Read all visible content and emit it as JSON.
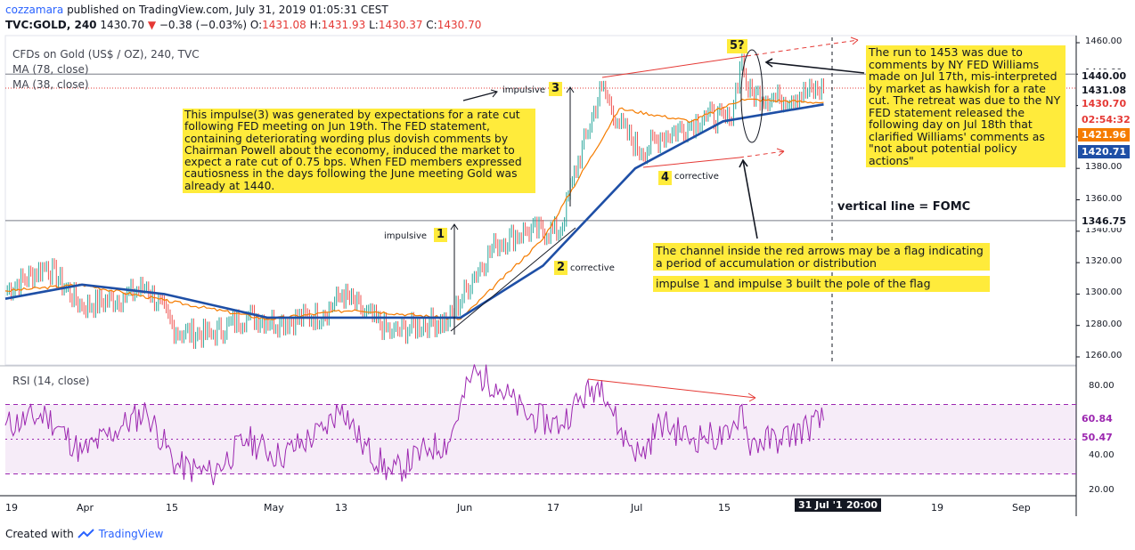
{
  "header": {
    "user": "cozzamara",
    "published_text": "published on TradingView.com, July 31, 2019 01:05:31 CEST",
    "symbol": "TVC:GOLD, 240",
    "last": "1430.70",
    "change_arrow": "▼",
    "change": "−0.38 (−0.03%)",
    "o_label": "O:",
    "o": "1431.08",
    "h_label": "H:",
    "h": "1431.93",
    "l_label": "L:",
    "l": "1430.37",
    "c_label": "C:",
    "c": "1430.70"
  },
  "legend": {
    "title": "CFDs on Gold (US$ / OZ), 240, TVC",
    "ma78": "MA (78, close)",
    "ma38": "MA (38, close)",
    "rsi": "RSI (14, close)"
  },
  "annotations": {
    "impulse3_note": "This impulse(3) was generated by expectations for a rate cut following FED meeting on Jun 19th. The FED statement, containing deteriorating wording plus dovish comments by Chairman Powell about the economy, induced the market to expect a rate cut of 0.75 bps. When FED members expressed cautiosness in the days following the June meeting Gold was already at 1440.",
    "run_note": "The run to 1453 was due to comments by NY FED Williams made on Jul 17th, mis-interpreted by market as hawkish for a rate cut. The retreat was due to the NY FED statement released the following day on Jul 18th that clarified Williams' comments as \"not about potential policy actions\"",
    "fomc": "vertical line = FOMC",
    "channel_note": "The channel inside the red arrows may be a flag indicating a period of accumulation or distribution",
    "pole_note": "impulse 1 and impulse 3 built the pole of the flag",
    "wave1": "1",
    "wave1_label": "impulsive",
    "wave2": "2",
    "wave2_label": "corrective",
    "wave3": "3",
    "wave3_label": "impulsive",
    "wave4": "4",
    "wave4_label": "corrective",
    "wave5": "5?"
  },
  "price_axis": {
    "ticks": [
      "1460.00",
      "1440.00",
      "1420.00",
      "1400.00",
      "1380.00",
      "1360.00",
      "1340.00",
      "1320.00",
      "1300.00",
      "1280.00",
      "1260.00"
    ],
    "tags": [
      {
        "text": "1440.00",
        "bg": "#ffffff",
        "fg": "#131722"
      },
      {
        "text": "1431.08",
        "bg": "#ffffff",
        "fg": "#131722"
      },
      {
        "text": "1430.70",
        "bg": "#ffffff",
        "fg": "#e53935"
      },
      {
        "text": "02:54:32",
        "bg": "#ffffff",
        "fg": "#e53935"
      },
      {
        "text": "1421.96",
        "bg": "#f57c00",
        "fg": "#ffffff"
      },
      {
        "text": "1420.71",
        "bg": "#1e4fa6",
        "fg": "#ffffff"
      },
      {
        "text": "1346.75",
        "bg": "#ffffff",
        "fg": "#131722"
      }
    ]
  },
  "rsi_axis": {
    "ticks": [
      "80.00",
      "60.00",
      "40.00",
      "20.00"
    ],
    "tags": [
      {
        "text": "60.84",
        "bg": "#ffffff",
        "fg": "#9c27b0"
      },
      {
        "text": "50.47",
        "bg": "#ffffff",
        "fg": "#9c27b0"
      }
    ]
  },
  "time_axis": {
    "labels": [
      "19",
      "Apr",
      "15",
      "May",
      "13",
      "Jun",
      "17",
      "Jul",
      "15",
      "31 Jul '19",
      "20:00",
      "19",
      "Sep"
    ]
  },
  "footer": {
    "created_with": "Created with",
    "brand": "TradingView"
  },
  "colors": {
    "candle": "#26a69a",
    "ma78": "#1e4fa6",
    "ma38": "#f57c00",
    "rsi": "#9c27b0",
    "annotation_red": "#e53935",
    "note_bg": "#ffeb3b"
  },
  "chart_data": {
    "type": "line",
    "title": "CFDs on Gold (US$ / OZ), 240, TVC",
    "price_ylim": [
      1255,
      1465
    ],
    "rsi_ylim": [
      20,
      90
    ],
    "close_path": [
      [
        "Mar 19",
        1302
      ],
      [
        "Mar 26",
        1318
      ],
      [
        "Apr 1",
        1292
      ],
      [
        "Apr 8",
        1298
      ],
      [
        "Apr 12",
        1305
      ],
      [
        "Apr 17",
        1276
      ],
      [
        "Apr 23",
        1274
      ],
      [
        "Apr 29",
        1286
      ],
      [
        "May 3",
        1282
      ],
      [
        "May 10",
        1287
      ],
      [
        "May 13",
        1300
      ],
      [
        "May 16",
        1290
      ],
      [
        "May 21",
        1275
      ],
      [
        "May 27",
        1282
      ],
      [
        "May 30",
        1282
      ],
      [
        "Jun 3",
        1310
      ],
      [
        "Jun 7",
        1332
      ],
      [
        "Jun 12",
        1340
      ],
      [
        "Jun 18",
        1340
      ],
      [
        "Jun 20",
        1372
      ],
      [
        "Jun 25",
        1432
      ],
      [
        "Jun 28",
        1408
      ],
      [
        "Jul 2",
        1390
      ],
      [
        "Jul 5",
        1400
      ],
      [
        "Jul 10",
        1408
      ],
      [
        "Jul 12",
        1414
      ],
      [
        "Jul 16",
        1410
      ],
      [
        "Jul 18",
        1450
      ],
      [
        "Jul 19",
        1428
      ],
      [
        "Jul 24",
        1424
      ],
      [
        "Jul 31",
        1430.7
      ]
    ],
    "ma78_path": [
      [
        "Mar 19",
        1297
      ],
      [
        "Apr 1",
        1306
      ],
      [
        "Apr 15",
        1300
      ],
      [
        "May 1",
        1285
      ],
      [
        "May 15",
        1285
      ],
      [
        "Jun 1",
        1285
      ],
      [
        "Jun 15",
        1318
      ],
      [
        "Jul 1",
        1380
      ],
      [
        "Jul 15",
        1410
      ],
      [
        "Jul 31",
        1420.71
      ]
    ],
    "ma38_path": [
      [
        "Mar 19",
        1302
      ],
      [
        "Apr 1",
        1306
      ],
      [
        "Apr 15",
        1296
      ],
      [
        "May 1",
        1284
      ],
      [
        "May 15",
        1290
      ],
      [
        "Jun 1",
        1284
      ],
      [
        "Jun 15",
        1335
      ],
      [
        "Jun 28",
        1418
      ],
      [
        "Jul 10",
        1410
      ],
      [
        "Jul 18",
        1424
      ],
      [
        "Jul 31",
        1421.96
      ]
    ],
    "rsi_path": [
      [
        "Mar 19",
        58
      ],
      [
        "Mar 26",
        64
      ],
      [
        "Apr 1",
        42
      ],
      [
        "Apr 8",
        58
      ],
      [
        "Apr 12",
        66
      ],
      [
        "Apr 17",
        35
      ],
      [
        "Apr 23",
        30
      ],
      [
        "Apr 29",
        50
      ],
      [
        "May 3",
        40
      ],
      [
        "May 10",
        55
      ],
      [
        "May 13",
        70
      ],
      [
        "May 16",
        48
      ],
      [
        "May 21",
        30
      ],
      [
        "May 27",
        45
      ],
      [
        "May 30",
        48
      ],
      [
        "Jun 3",
        88
      ],
      [
        "Jun 7",
        82
      ],
      [
        "Jun 12",
        64
      ],
      [
        "Jun 18",
        58
      ],
      [
        "Jun 20",
        68
      ],
      [
        "Jun 25",
        84
      ],
      [
        "Jun 28",
        55
      ],
      [
        "Jul 2",
        40
      ],
      [
        "Jul 5",
        60
      ],
      [
        "Jul 10",
        50
      ],
      [
        "Jul 12",
        52
      ],
      [
        "Jul 16",
        50
      ],
      [
        "Jul 18",
        70
      ],
      [
        "Jul 19",
        48
      ],
      [
        "Jul 24",
        50
      ],
      [
        "Jul 31",
        60.84
      ]
    ],
    "horizontal_levels": [
      1440.0,
      1431.08,
      1346.75
    ],
    "fomc_date": "Jul 31"
  }
}
